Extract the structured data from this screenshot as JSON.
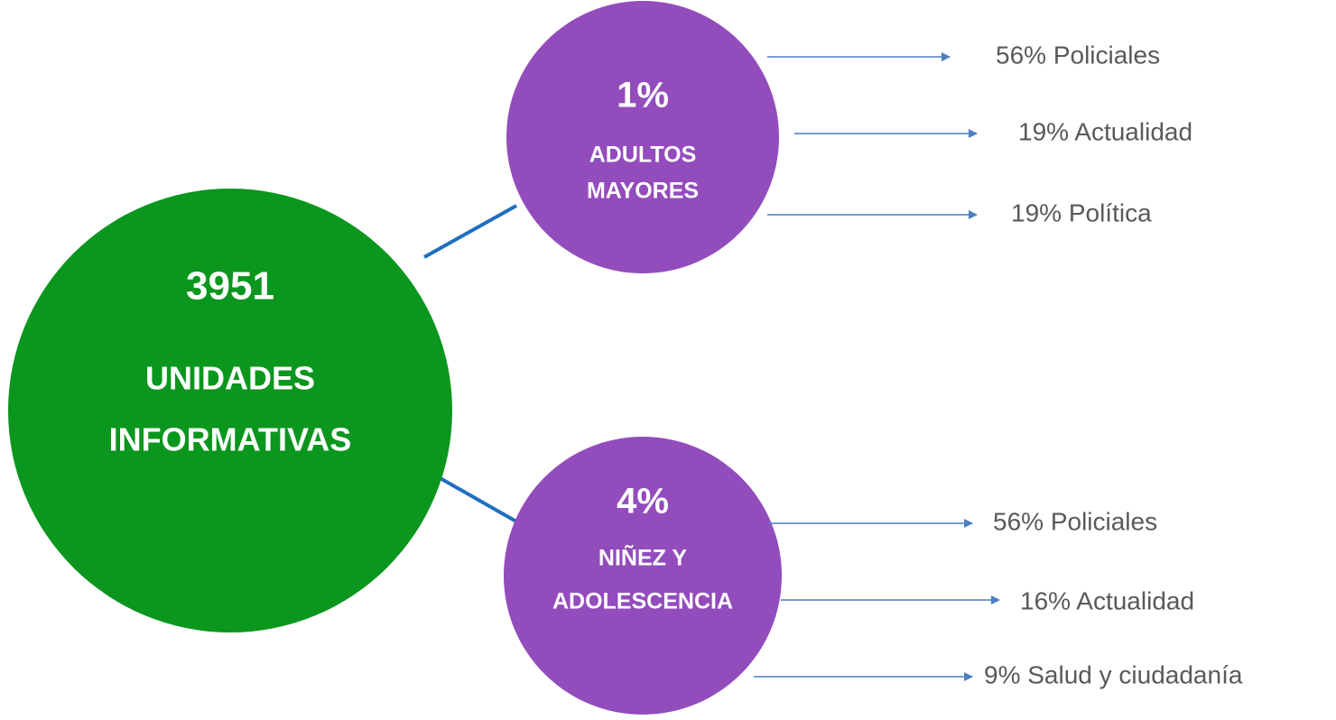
{
  "center": {
    "value": "3951",
    "line1": "UNIDADES",
    "line2": "INFORMATIVAS"
  },
  "groups": [
    {
      "percent": "1%",
      "line1": "ADULTOS",
      "line2": "MAYORES",
      "items": [
        "56% Policiales",
        "19% Actualidad",
        "19% Política"
      ]
    },
    {
      "percent": "4%",
      "line1": "NIÑEZ Y",
      "line2": "ADOLESCENCIA",
      "items": [
        "56% Policiales",
        "16% Actualidad",
        "9% Salud y ciudadanía"
      ]
    }
  ]
}
